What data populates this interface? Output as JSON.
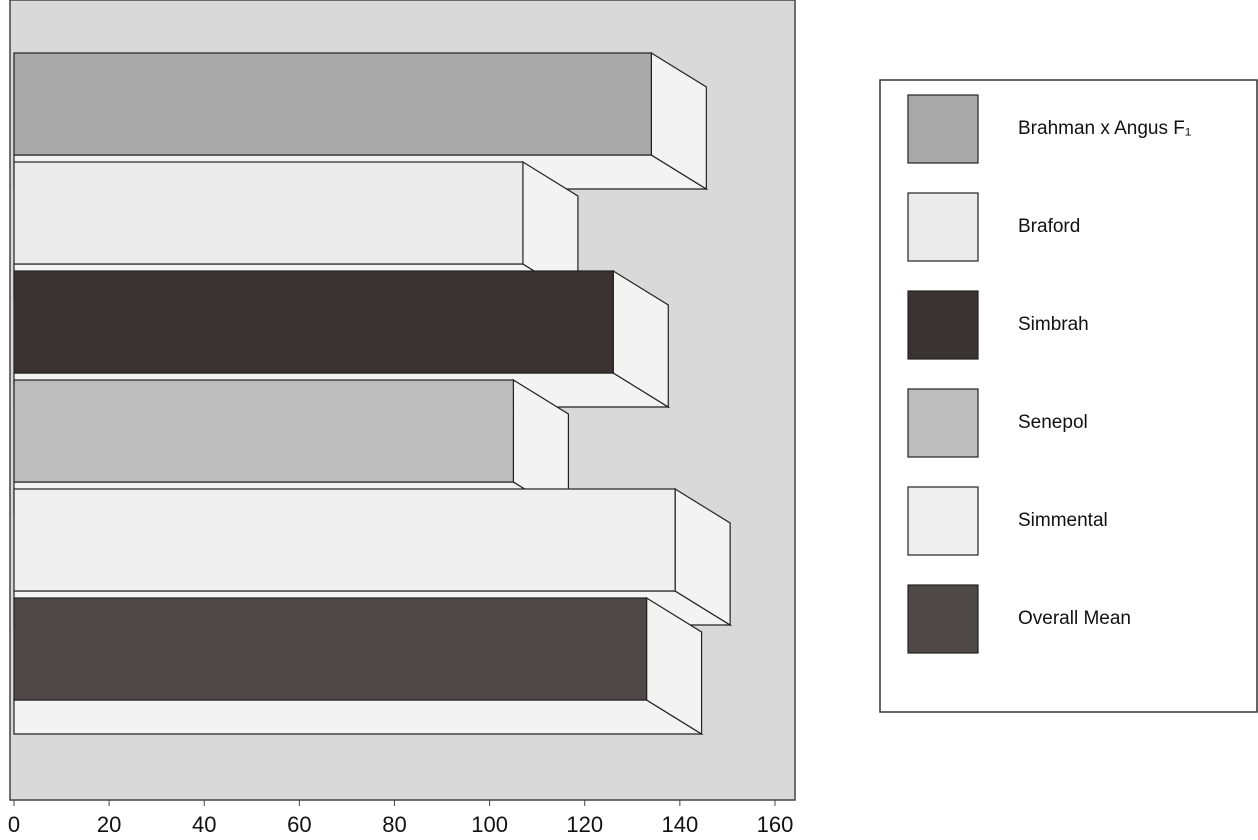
{
  "chart_data": {
    "type": "bar",
    "orientation": "horizontal",
    "categories": [
      "Brahman x Angus F₁",
      "Braford",
      "Simbrah",
      "Senepol",
      "Simmental",
      "Overall Mean"
    ],
    "values": [
      134,
      107,
      126,
      105,
      139,
      133
    ],
    "colors": [
      "#a9a9a9",
      "#ebebeb",
      "#3b3333",
      "#bdbdbd",
      "#efefef",
      "#4f4848"
    ],
    "xlim": [
      0,
      160
    ],
    "xticks": [
      0,
      20,
      40,
      60,
      80,
      100,
      120,
      140,
      160
    ]
  }
}
